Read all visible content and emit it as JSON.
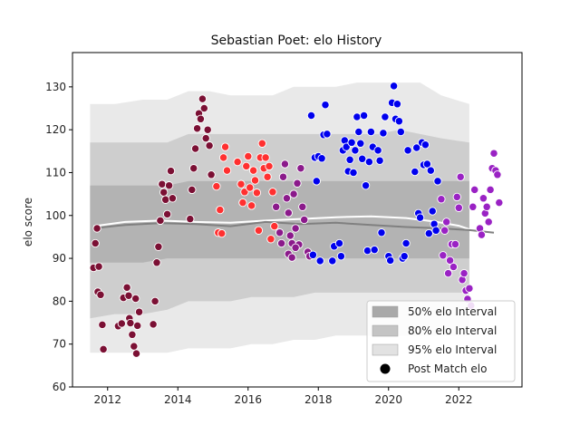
{
  "chart_data": {
    "type": "scatter",
    "title": "Sebastian Poet: elo History",
    "xlabel": "",
    "ylabel": "elo score",
    "xlim": [
      2011.0,
      2023.8
    ],
    "ylim": [
      60,
      138
    ],
    "x_ticks": [
      2012,
      2014,
      2016,
      2018,
      2020,
      2022
    ],
    "y_ticks": [
      60,
      70,
      80,
      90,
      100,
      110,
      120,
      130
    ],
    "legend": {
      "placement": "lower-right",
      "entries": [
        {
          "label": "50% elo Interval",
          "kind": "band",
          "color": "#a9a9a9"
        },
        {
          "label": "80% elo Interval",
          "kind": "band",
          "color": "#c4c4c4"
        },
        {
          "label": "95% elo Interval",
          "kind": "band",
          "color": "#e2e2e2"
        },
        {
          "label": "Post Match elo",
          "kind": "marker",
          "color": "#000000"
        }
      ]
    },
    "bands": {
      "years": [
        2011.5,
        2012.2,
        2013.0,
        2013.7,
        2014.3,
        2014.9,
        2015.5,
        2016.1,
        2016.7,
        2017.3,
        2017.9,
        2018.5,
        2019.1,
        2019.7,
        2020.3,
        2020.9,
        2021.5,
        2022.3
      ],
      "i95_low": [
        68,
        68,
        68,
        68,
        69,
        69,
        69,
        70,
        70,
        71,
        71,
        72,
        72,
        72,
        72,
        72,
        72,
        72
      ],
      "i95_high": [
        126,
        126,
        127,
        127,
        129,
        129,
        128,
        128,
        128,
        130,
        130,
        130,
        131,
        131,
        131,
        131,
        128,
        126
      ],
      "i80_low": [
        76,
        77,
        77,
        78,
        80,
        80,
        80,
        81,
        81,
        81,
        82,
        82,
        82,
        82,
        82,
        82,
        82,
        82
      ],
      "i80_high": [
        117,
        117,
        117,
        117,
        119,
        119,
        119,
        119,
        119,
        119,
        119,
        119,
        119,
        119,
        120,
        119,
        118,
        117
      ],
      "i50_low": [
        89,
        89,
        89,
        90,
        90,
        90,
        90,
        90,
        90,
        90,
        90,
        90,
        90,
        90,
        90,
        90,
        90,
        90
      ],
      "i50_high": [
        107,
        107,
        107,
        107,
        108,
        108,
        108,
        108,
        108,
        108,
        108,
        108,
        108,
        108,
        108,
        108,
        108,
        108
      ]
    },
    "lines": [
      {
        "color": "#ffffff",
        "points": [
          [
            2011.6,
            97.5
          ],
          [
            2012.5,
            98.5
          ],
          [
            2013.5,
            98.8
          ],
          [
            2014.5,
            98.5
          ],
          [
            2015.5,
            98.3
          ],
          [
            2016.5,
            98.8
          ],
          [
            2017.5,
            99.2
          ],
          [
            2018.5,
            99.6
          ],
          [
            2019.5,
            99.8
          ],
          [
            2020.5,
            99.4
          ],
          [
            2021.3,
            98.6
          ],
          [
            2022.0,
            97.6
          ],
          [
            2022.4,
            96.5
          ]
        ]
      },
      {
        "color": "#808080",
        "points": [
          [
            2011.6,
            97.0
          ],
          [
            2012.5,
            97.8
          ],
          [
            2013.5,
            98.2
          ],
          [
            2014.5,
            98.0
          ],
          [
            2015.5,
            97.5
          ],
          [
            2016.5,
            98.5
          ],
          [
            2017.5,
            98.0
          ],
          [
            2018.5,
            98.3
          ],
          [
            2019.5,
            97.8
          ],
          [
            2020.5,
            97.3
          ],
          [
            2021.5,
            97.0
          ],
          [
            2022.3,
            96.6
          ],
          [
            2023.0,
            96.0
          ]
        ]
      }
    ],
    "series": [
      {
        "color": "#7b1034",
        "points": [
          [
            2011.6,
            87.8
          ],
          [
            2011.65,
            93.5
          ],
          [
            2011.7,
            97.0
          ],
          [
            2011.72,
            82.2
          ],
          [
            2011.75,
            88.1
          ],
          [
            2011.8,
            81.5
          ],
          [
            2011.85,
            74.5
          ],
          [
            2011.88,
            68.8
          ],
          [
            2012.3,
            74.2
          ],
          [
            2012.4,
            74.8
          ],
          [
            2012.45,
            80.8
          ],
          [
            2012.55,
            83.2
          ],
          [
            2012.6,
            81.3
          ],
          [
            2012.62,
            76.0
          ],
          [
            2012.65,
            74.9
          ],
          [
            2012.7,
            72.2
          ],
          [
            2012.75,
            69.5
          ],
          [
            2012.8,
            80.6
          ],
          [
            2012.82,
            67.8
          ],
          [
            2012.85,
            74.3
          ],
          [
            2012.9,
            77.5
          ],
          [
            2013.3,
            74.6
          ],
          [
            2013.35,
            80.0
          ],
          [
            2013.4,
            89.0
          ],
          [
            2013.45,
            92.7
          ],
          [
            2013.5,
            98.8
          ],
          [
            2013.55,
            107.3
          ],
          [
            2013.6,
            105.4
          ],
          [
            2013.65,
            103.7
          ],
          [
            2013.7,
            100.3
          ],
          [
            2013.75,
            107.0
          ],
          [
            2013.8,
            110.4
          ],
          [
            2013.85,
            104.0
          ],
          [
            2014.35,
            99.2
          ],
          [
            2014.4,
            106.0
          ],
          [
            2014.45,
            111.0
          ],
          [
            2014.5,
            115.6
          ],
          [
            2014.55,
            120.3
          ],
          [
            2014.6,
            123.8
          ],
          [
            2014.65,
            122.5
          ],
          [
            2014.7,
            127.2
          ],
          [
            2014.75,
            125.0
          ],
          [
            2014.8,
            118.0
          ],
          [
            2014.85,
            120.0
          ],
          [
            2014.9,
            116.3
          ],
          [
            2014.95,
            109.5
          ]
        ]
      },
      {
        "color": "#ff3030",
        "points": [
          [
            2015.1,
            106.8
          ],
          [
            2015.15,
            96.0
          ],
          [
            2015.2,
            101.3
          ],
          [
            2015.25,
            95.8
          ],
          [
            2015.3,
            113.5
          ],
          [
            2015.35,
            116.0
          ],
          [
            2015.4,
            110.5
          ],
          [
            2015.7,
            112.5
          ],
          [
            2015.8,
            107.3
          ],
          [
            2015.85,
            103.0
          ],
          [
            2015.9,
            105.5
          ],
          [
            2015.95,
            111.5
          ],
          [
            2016.0,
            113.8
          ],
          [
            2016.05,
            106.5
          ],
          [
            2016.1,
            102.3
          ],
          [
            2016.15,
            110.5
          ],
          [
            2016.2,
            108.2
          ],
          [
            2016.25,
            105.3
          ],
          [
            2016.3,
            96.5
          ],
          [
            2016.35,
            113.5
          ],
          [
            2016.4,
            116.8
          ],
          [
            2016.45,
            111.0
          ],
          [
            2016.5,
            113.5
          ],
          [
            2016.55,
            109.0
          ],
          [
            2016.6,
            111.5
          ],
          [
            2016.65,
            94.5
          ],
          [
            2016.7,
            105.5
          ],
          [
            2016.75,
            97.5
          ]
        ]
      },
      {
        "color": "#8b1a8b",
        "points": [
          [
            2016.8,
            102.0
          ],
          [
            2016.9,
            96.0
          ],
          [
            2016.95,
            93.5
          ],
          [
            2017.0,
            109.0
          ],
          [
            2017.05,
            112.0
          ],
          [
            2017.1,
            104.0
          ],
          [
            2017.15,
            100.6
          ],
          [
            2017.2,
            95.3
          ],
          [
            2017.25,
            93.5
          ],
          [
            2017.3,
            105.0
          ],
          [
            2017.35,
            97.0
          ],
          [
            2017.4,
            107.5
          ],
          [
            2017.45,
            93.2
          ],
          [
            2017.5,
            111.0
          ],
          [
            2017.55,
            102.0
          ],
          [
            2017.6,
            99.0
          ],
          [
            2017.7,
            91.5
          ],
          [
            2017.75,
            90.5
          ],
          [
            2017.15,
            91.0
          ],
          [
            2017.25,
            90.2
          ],
          [
            2017.35,
            92.5
          ]
        ]
      },
      {
        "color": "#0000ee",
        "points": [
          [
            2017.8,
            123.3
          ],
          [
            2017.85,
            90.8
          ],
          [
            2017.9,
            113.5
          ],
          [
            2017.95,
            108.0
          ],
          [
            2018.0,
            113.8
          ],
          [
            2018.05,
            89.4
          ],
          [
            2018.1,
            113.3
          ],
          [
            2018.15,
            118.8
          ],
          [
            2018.2,
            125.8
          ],
          [
            2018.25,
            119.0
          ],
          [
            2018.4,
            89.4
          ],
          [
            2018.45,
            92.8
          ],
          [
            2018.6,
            93.5
          ],
          [
            2018.65,
            90.5
          ],
          [
            2018.7,
            115.2
          ],
          [
            2018.75,
            117.5
          ],
          [
            2018.8,
            116.0
          ],
          [
            2018.85,
            110.3
          ],
          [
            2018.9,
            113.0
          ],
          [
            2018.95,
            117.0
          ],
          [
            2019.0,
            110.0
          ],
          [
            2019.05,
            115.2
          ],
          [
            2019.1,
            123.0
          ],
          [
            2019.15,
            119.5
          ],
          [
            2019.2,
            116.8
          ],
          [
            2019.25,
            113.2
          ],
          [
            2019.3,
            123.3
          ],
          [
            2019.35,
            107.0
          ],
          [
            2019.4,
            91.8
          ],
          [
            2019.45,
            112.5
          ],
          [
            2019.5,
            119.5
          ],
          [
            2019.55,
            116.0
          ],
          [
            2019.6,
            92.0
          ],
          [
            2019.7,
            115.2
          ],
          [
            2019.75,
            112.8
          ],
          [
            2019.8,
            96.0
          ],
          [
            2019.85,
            119.2
          ],
          [
            2019.9,
            123.0
          ],
          [
            2020.0,
            90.5
          ],
          [
            2020.05,
            89.5
          ],
          [
            2020.1,
            126.3
          ],
          [
            2020.15,
            130.2
          ],
          [
            2020.2,
            122.5
          ],
          [
            2020.25,
            126.0
          ],
          [
            2020.3,
            122.0
          ],
          [
            2020.35,
            119.5
          ],
          [
            2020.4,
            90.0
          ],
          [
            2020.45,
            90.5
          ],
          [
            2020.5,
            93.5
          ],
          [
            2020.55,
            115.2
          ],
          [
            2020.75,
            110.2
          ],
          [
            2020.8,
            115.8
          ],
          [
            2020.85,
            100.5
          ],
          [
            2020.9,
            99.5
          ],
          [
            2020.95,
            117.0
          ],
          [
            2021.0,
            111.8
          ],
          [
            2021.05,
            116.5
          ],
          [
            2021.1,
            112.0
          ],
          [
            2021.15,
            95.8
          ],
          [
            2021.2,
            110.5
          ],
          [
            2021.25,
            101.0
          ],
          [
            2021.3,
            98.0
          ],
          [
            2021.35,
            96.5
          ],
          [
            2021.4,
            108.0
          ]
        ]
      },
      {
        "color": "#9a22c4",
        "points": [
          [
            2021.5,
            103.8
          ],
          [
            2021.55,
            90.7
          ],
          [
            2021.6,
            96.5
          ],
          [
            2021.65,
            98.5
          ],
          [
            2021.7,
            86.5
          ],
          [
            2021.75,
            89.5
          ],
          [
            2021.8,
            93.3
          ],
          [
            2021.85,
            88.0
          ],
          [
            2021.9,
            93.3
          ],
          [
            2021.95,
            104.3
          ],
          [
            2022.0,
            101.8
          ],
          [
            2022.05,
            109.0
          ],
          [
            2022.1,
            85.0
          ],
          [
            2022.15,
            86.5
          ],
          [
            2022.2,
            82.5
          ],
          [
            2022.25,
            80.5
          ],
          [
            2022.3,
            83.0
          ],
          [
            2022.35,
            79.0
          ],
          [
            2022.4,
            102.0
          ],
          [
            2022.45,
            106.0
          ],
          [
            2022.6,
            97.0
          ],
          [
            2022.65,
            95.5
          ],
          [
            2022.7,
            104.0
          ],
          [
            2022.75,
            100.5
          ],
          [
            2022.8,
            102.0
          ],
          [
            2022.85,
            98.5
          ],
          [
            2022.9,
            106.0
          ],
          [
            2022.95,
            111.0
          ],
          [
            2023.0,
            114.5
          ],
          [
            2023.05,
            110.5
          ],
          [
            2023.1,
            109.5
          ],
          [
            2023.15,
            103.0
          ]
        ]
      }
    ]
  }
}
